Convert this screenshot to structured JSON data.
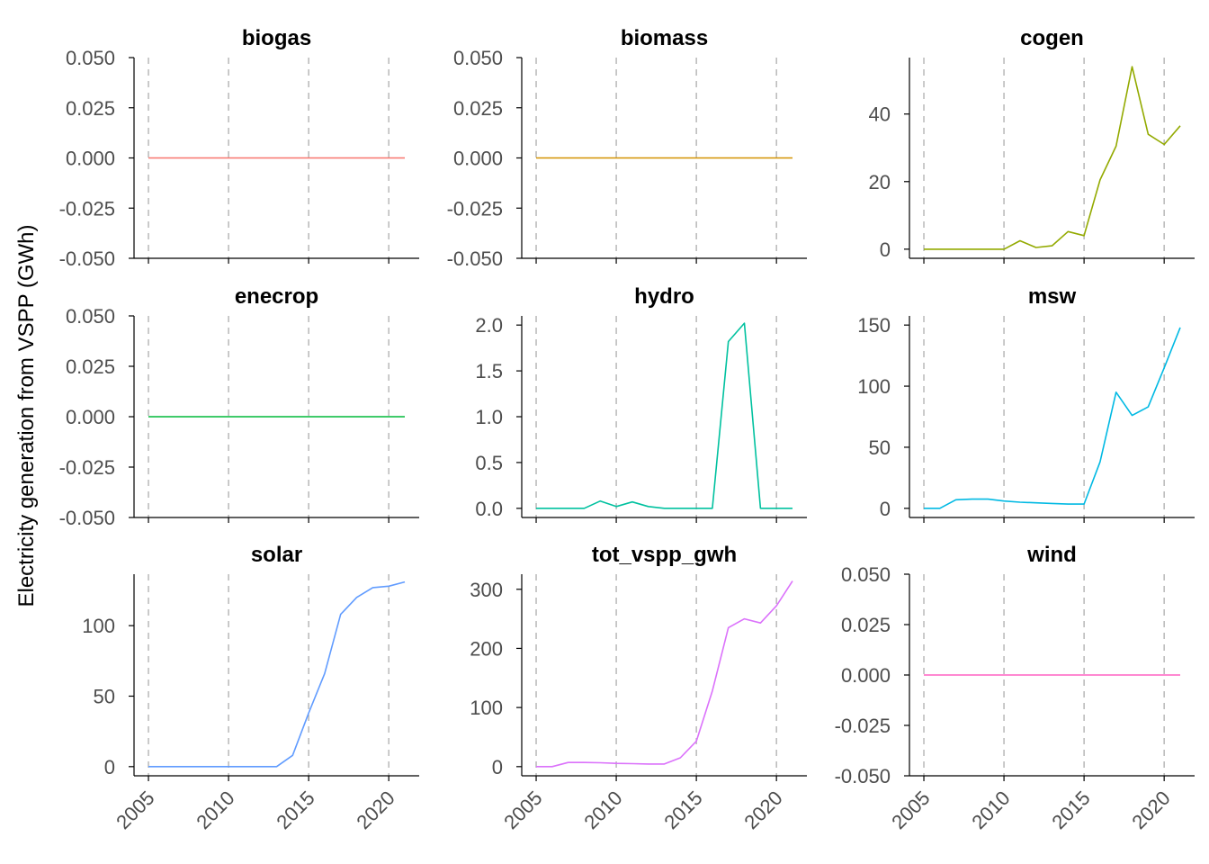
{
  "chart_data": {
    "type": "line",
    "ylabel": "Electricity generation from VSPP (GWh)",
    "x": [
      2005,
      2006,
      2007,
      2008,
      2009,
      2010,
      2011,
      2012,
      2013,
      2014,
      2015,
      2016,
      2017,
      2018,
      2019,
      2020,
      2021
    ],
    "x_ticks": [
      2005,
      2010,
      2015,
      2020
    ],
    "xlim": [
      2004.1,
      2021.9
    ],
    "vertical_dashed_grid": true,
    "panels": [
      {
        "title": "biogas",
        "color": "#F8766D",
        "ylim": [
          -0.05,
          0.05
        ],
        "y_ticks": [
          "0.050",
          "0.025",
          "0.000",
          "-0.025",
          "-0.050"
        ],
        "y_tick_values": [
          0.05,
          0.025,
          0,
          -0.025,
          -0.05
        ],
        "values": [
          0,
          0,
          0,
          0,
          0,
          0,
          0,
          0,
          0,
          0,
          0,
          0,
          0,
          0,
          0,
          0,
          0
        ]
      },
      {
        "title": "biomass",
        "color": "#D39200",
        "ylim": [
          -0.05,
          0.05
        ],
        "y_ticks": [
          "0.050",
          "0.025",
          "0.000",
          "-0.025",
          "-0.050"
        ],
        "y_tick_values": [
          0.05,
          0.025,
          0,
          -0.025,
          -0.05
        ],
        "values": [
          0,
          0,
          0,
          0,
          0,
          0,
          0,
          0,
          0,
          0,
          0,
          0,
          0,
          0,
          0,
          0,
          0
        ]
      },
      {
        "title": "cogen",
        "color": "#93AA00",
        "ylim": [
          -2.7,
          56.7
        ],
        "y_ticks": [
          "40",
          "20",
          "0"
        ],
        "y_tick_values": [
          40,
          20,
          0
        ],
        "values": [
          0,
          0,
          0,
          0,
          0,
          0,
          2.5,
          0.5,
          1,
          5.2,
          4,
          20.5,
          30.5,
          54,
          34,
          31,
          36.5
        ]
      },
      {
        "title": "enecrop",
        "color": "#00BA38",
        "ylim": [
          -0.05,
          0.05
        ],
        "y_ticks": [
          "0.050",
          "0.025",
          "0.000",
          "-0.025",
          "-0.050"
        ],
        "y_tick_values": [
          0.05,
          0.025,
          0,
          -0.025,
          -0.05
        ],
        "values": [
          0,
          0,
          0,
          0,
          0,
          0,
          0,
          0,
          0,
          0,
          0,
          0,
          0,
          0,
          0,
          0,
          0
        ]
      },
      {
        "title": "hydro",
        "color": "#00C19F",
        "ylim": [
          -0.1,
          2.1
        ],
        "y_ticks": [
          "2.0",
          "1.5",
          "1.0",
          "0.5",
          "0.0"
        ],
        "y_tick_values": [
          2,
          1.5,
          1,
          0.5,
          0
        ],
        "values": [
          0,
          0,
          0,
          0,
          0.08,
          0.02,
          0.07,
          0.02,
          0,
          0,
          0,
          0,
          1.82,
          2.02,
          0,
          0,
          0
        ]
      },
      {
        "title": "msw",
        "color": "#00B9E3",
        "ylim": [
          -7.5,
          157.5
        ],
        "y_ticks": [
          "150",
          "100",
          "50",
          "0"
        ],
        "y_tick_values": [
          150,
          100,
          50,
          0
        ],
        "values": [
          0,
          0,
          7,
          7.5,
          7.5,
          6,
          5,
          4.5,
          4,
          3.5,
          3.5,
          38,
          95,
          76,
          83,
          115,
          148
        ]
      },
      {
        "title": "solar",
        "color": "#619CFF",
        "ylim": [
          -6.5,
          136.5
        ],
        "y_ticks": [
          "100",
          "50",
          "0"
        ],
        "y_tick_values": [
          100,
          50,
          0
        ],
        "values": [
          0,
          0,
          0,
          0,
          0,
          0,
          0,
          0,
          0,
          8,
          38,
          66,
          108,
          120,
          127,
          128,
          131
        ]
      },
      {
        "title": "tot_vspp_gwh",
        "color": "#DB72FB",
        "ylim": [
          -15.5,
          325.5
        ],
        "y_ticks": [
          "300",
          "200",
          "100",
          "0"
        ],
        "y_tick_values": [
          300,
          200,
          100,
          0
        ],
        "values": [
          0,
          0,
          7,
          7,
          6.5,
          5.5,
          5,
          4.5,
          4.5,
          15,
          43,
          128,
          235,
          250,
          243,
          272,
          314
        ]
      },
      {
        "title": "wind",
        "color": "#FF61C3",
        "ylim": [
          -0.05,
          0.05
        ],
        "y_ticks": [
          "0.050",
          "0.025",
          "0.000",
          "-0.025",
          "-0.050"
        ],
        "y_tick_values": [
          0.05,
          0.025,
          0,
          -0.025,
          -0.05
        ],
        "values": [
          0,
          0,
          0,
          0,
          0,
          0,
          0,
          0,
          0,
          0,
          0,
          0,
          0,
          0,
          0,
          0,
          0
        ]
      }
    ]
  }
}
